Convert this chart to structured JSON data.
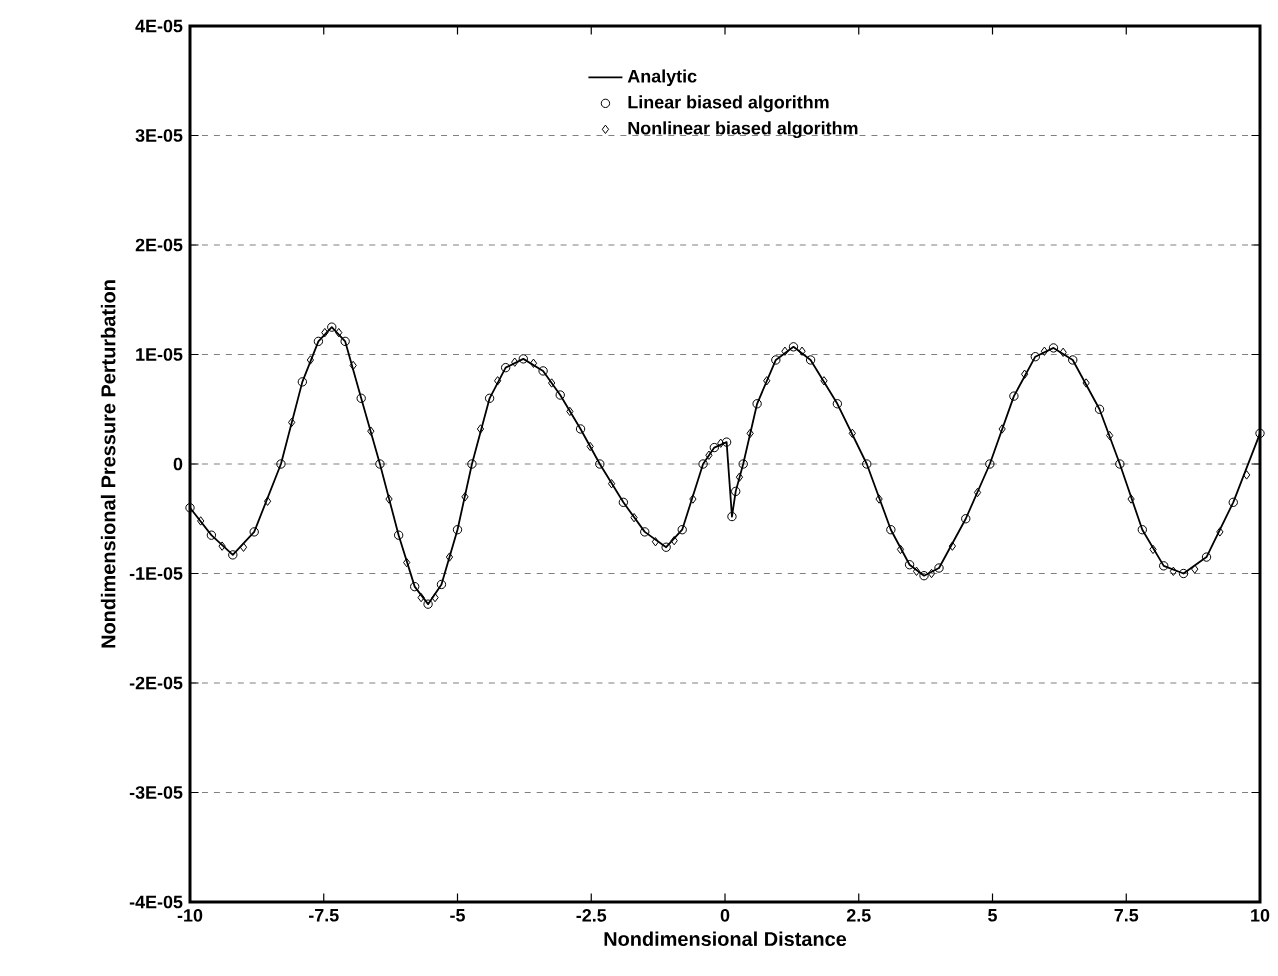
{
  "chart_data": {
    "type": "line",
    "xlabel": "Nondimensional Distance",
    "ylabel": "Nondimensional Pressure Perturbation",
    "xlim": [
      -10,
      10
    ],
    "ylim": [
      -4e-05,
      4e-05
    ],
    "xticks": [
      -10,
      -7.5,
      -5,
      -2.5,
      0,
      2.5,
      5,
      7.5,
      10
    ],
    "yticks": [
      {
        "value": -4e-05,
        "label": "-4E-05"
      },
      {
        "value": -3e-05,
        "label": "-3E-05"
      },
      {
        "value": -2e-05,
        "label": "-2E-05"
      },
      {
        "value": -1e-05,
        "label": "-1E-05"
      },
      0,
      {
        "value": 1e-05,
        "label": "1E-05"
      },
      {
        "value": 2e-05,
        "label": "2E-05"
      },
      {
        "value": 3e-05,
        "label": "3E-05"
      },
      {
        "value": 4e-05,
        "label": "4E-05"
      }
    ],
    "grid": "y",
    "legend": "top",
    "series": [
      {
        "name": "Analytic",
        "marker": "none",
        "line_style": "solid",
        "color": "#000000",
        "x": [
          -10,
          -9.6,
          -9.2,
          -8.8,
          -8.3,
          -7.9,
          -7.6,
          -7.35,
          -7.1,
          -6.8,
          -6.45,
          -6.1,
          -5.8,
          -5.55,
          -5.3,
          -5.0,
          -4.73,
          -4.4,
          -4.1,
          -3.77,
          -3.4,
          -3.08,
          -2.7,
          -2.34,
          -1.9,
          -1.5,
          -1.1,
          -0.8,
          -0.41,
          -0.2,
          0.03,
          0.13,
          0.2,
          0.34,
          0.6,
          0.95,
          1.28,
          1.6,
          2.1,
          2.65,
          3.1,
          3.45,
          3.72,
          4.0,
          4.5,
          4.95,
          5.4,
          5.8,
          6.14,
          6.5,
          7.0,
          7.38,
          7.8,
          8.2,
          8.57,
          9.0,
          9.5,
          10
        ],
        "values": [
          -4e-06,
          -6.5e-06,
          -8.3e-06,
          -6.2e-06,
          0.0,
          7.5e-06,
          1.12e-05,
          1.25e-05,
          1.12e-05,
          6e-06,
          0.0,
          -6.5e-06,
          -1.12e-05,
          -1.28e-05,
          -1.1e-05,
          -6e-06,
          0.0,
          6e-06,
          8.8e-06,
          9.6e-06,
          8.5e-06,
          6.3e-06,
          3.2e-06,
          0.0,
          -3.5e-06,
          -6.2e-06,
          -7.6e-06,
          -6e-06,
          0.0,
          1.5e-06,
          2e-06,
          -4.8e-06,
          -2.5e-06,
          0.0,
          5.5e-06,
          9.5e-06,
          1.07e-05,
          9.5e-06,
          5.5e-06,
          0.0,
          -6e-06,
          -9.2e-06,
          -1.02e-05,
          -9.5e-06,
          -5e-06,
          0.0,
          6.2e-06,
          9.8e-06,
          1.06e-05,
          9.5e-06,
          5e-06,
          0.0,
          -6e-06,
          -9.3e-06,
          -1e-05,
          -8.5e-06,
          -3.5e-06,
          2.8e-06
        ]
      },
      {
        "name": "Linear biased algorithm",
        "type": "scatter",
        "marker": "circle",
        "color": "#000000",
        "x": [
          -10,
          -9.6,
          -9.2,
          -8.8,
          -8.3,
          -7.9,
          -7.6,
          -7.35,
          -7.1,
          -6.8,
          -6.45,
          -6.1,
          -5.8,
          -5.55,
          -5.3,
          -5.0,
          -4.73,
          -4.4,
          -4.1,
          -3.77,
          -3.4,
          -3.08,
          -2.7,
          -2.34,
          -1.9,
          -1.5,
          -1.1,
          -0.8,
          -0.41,
          -0.2,
          0.03,
          0.13,
          0.2,
          0.34,
          0.6,
          0.95,
          1.28,
          1.6,
          2.1,
          2.65,
          3.1,
          3.45,
          3.72,
          4.0,
          4.5,
          4.95,
          5.4,
          5.8,
          6.14,
          6.5,
          7.0,
          7.38,
          7.8,
          8.2,
          8.57,
          9.0,
          9.5,
          10
        ],
        "values": [
          -4e-06,
          -6.5e-06,
          -8.3e-06,
          -6.2e-06,
          0.0,
          7.5e-06,
          1.12e-05,
          1.25e-05,
          1.12e-05,
          6e-06,
          0.0,
          -6.5e-06,
          -1.12e-05,
          -1.28e-05,
          -1.1e-05,
          -6e-06,
          0.0,
          6e-06,
          8.8e-06,
          9.6e-06,
          8.5e-06,
          6.3e-06,
          3.2e-06,
          0.0,
          -3.5e-06,
          -6.2e-06,
          -7.6e-06,
          -6e-06,
          0.0,
          1.5e-06,
          2e-06,
          -4.8e-06,
          -2.5e-06,
          0.0,
          5.5e-06,
          9.5e-06,
          1.07e-05,
          9.5e-06,
          5.5e-06,
          0.0,
          -6e-06,
          -9.2e-06,
          -1.02e-05,
          -9.5e-06,
          -5e-06,
          0.0,
          6.2e-06,
          9.8e-06,
          1.06e-05,
          9.5e-06,
          5e-06,
          0.0,
          -6e-06,
          -9.3e-06,
          -1e-05,
          -8.5e-06,
          -3.5e-06,
          2.8e-06
        ]
      },
      {
        "name": "Nonlinear biased algorithm",
        "type": "scatter",
        "marker": "diamond",
        "color": "#000000",
        "x": [
          -9.8,
          -9.4,
          -9.0,
          -8.55,
          -8.1,
          -7.75,
          -7.48,
          -7.22,
          -6.95,
          -6.62,
          -6.28,
          -5.95,
          -5.68,
          -5.42,
          -5.15,
          -4.86,
          -4.57,
          -4.25,
          -3.93,
          -3.58,
          -3.24,
          -2.9,
          -2.52,
          -2.12,
          -1.7,
          -1.3,
          -0.95,
          -0.6,
          -0.3,
          -0.08,
          0.27,
          0.47,
          0.78,
          1.12,
          1.44,
          1.85,
          2.38,
          2.88,
          3.28,
          3.58,
          3.86,
          4.25,
          4.72,
          5.18,
          5.6,
          5.97,
          6.32,
          6.75,
          7.19,
          7.59,
          8.0,
          8.38,
          8.78,
          9.25,
          9.75
        ],
        "values": [
          -5.2e-06,
          -7.5e-06,
          -7.6e-06,
          -3.4e-06,
          3.8e-06,
          9.5e-06,
          1.2e-05,
          1.2e-05,
          9e-06,
          3e-06,
          -3.2e-06,
          -9e-06,
          -1.22e-05,
          -1.22e-05,
          -8.5e-06,
          -3e-06,
          3.2e-06,
          7.6e-06,
          9.3e-06,
          9.2e-06,
          7.4e-06,
          4.8e-06,
          1.6e-06,
          -1.8e-06,
          -4.9e-06,
          -7.1e-06,
          -7e-06,
          -3.2e-06,
          8e-07,
          1.9e-06,
          -1.2e-06,
          2.8e-06,
          7.6e-06,
          1.03e-05,
          1.03e-05,
          7.6e-06,
          2.8e-06,
          -3.2e-06,
          -7.8e-06,
          -9.8e-06,
          -1e-05,
          -7.5e-06,
          -2.6e-06,
          3.2e-06,
          8.2e-06,
          1.03e-05,
          1.02e-05,
          7.4e-06,
          2.6e-06,
          -3.2e-06,
          -7.8e-06,
          -9.8e-06,
          -9.6e-06,
          -6.2e-06,
          -1e-06
        ]
      }
    ]
  }
}
